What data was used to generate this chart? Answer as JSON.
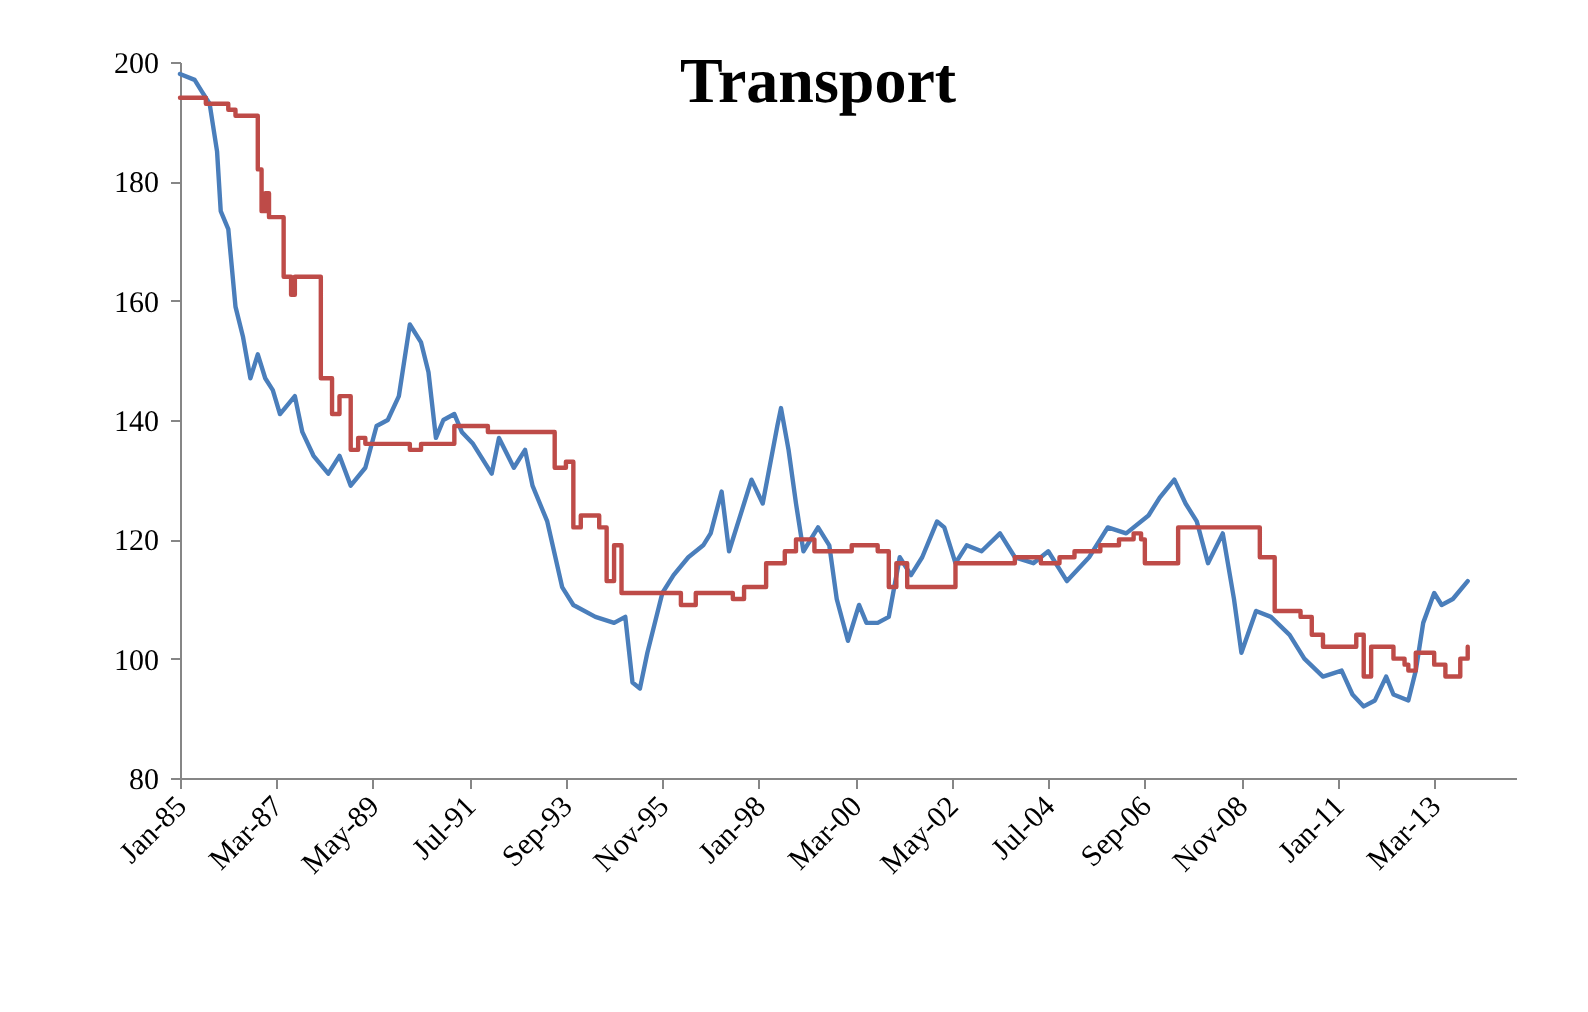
{
  "chart_data": {
    "type": "line",
    "title": "Transport",
    "xlim": [
      "1985-01",
      "2015-01"
    ],
    "xticks": [
      {
        "value": "1985-01",
        "label": "Jan-85"
      },
      {
        "value": "1987-03",
        "label": "Mar-87"
      },
      {
        "value": "1989-05",
        "label": "May-89"
      },
      {
        "value": "1991-07",
        "label": "Jul-91"
      },
      {
        "value": "1993-09",
        "label": "Sep-93"
      },
      {
        "value": "1995-11",
        "label": "Nov-95"
      },
      {
        "value": "1998-01",
        "label": "Jan-98"
      },
      {
        "value": "2000-03",
        "label": "Mar-00"
      },
      {
        "value": "2002-05",
        "label": "May-02"
      },
      {
        "value": "2004-07",
        "label": "Jul-04"
      },
      {
        "value": "2006-09",
        "label": "Sep-06"
      },
      {
        "value": "2008-11",
        "label": "Nov-08"
      },
      {
        "value": "2011-01",
        "label": "Jan-11"
      },
      {
        "value": "2013-03",
        "label": "Mar-13"
      }
    ],
    "ylim": [
      80,
      200
    ],
    "yticks": [
      80,
      100,
      120,
      140,
      160,
      180,
      200
    ],
    "grid": false,
    "marker": "none",
    "line_style": "solid",
    "series": [
      {
        "color": "#4a7ebb",
        "x": [
          "1985-01",
          "1985-05",
          "1985-07",
          "1985-09",
          "1985-11",
          "1985-12",
          "1986-02",
          "1986-04",
          "1986-06",
          "1986-08",
          "1986-10",
          "1986-12",
          "1987-02",
          "1987-04",
          "1987-08",
          "1987-10",
          "1988-01",
          "1988-05",
          "1988-08",
          "1988-11",
          "1989-03",
          "1989-06",
          "1989-09",
          "1989-12",
          "1990-03",
          "1990-06",
          "1990-08",
          "1990-10",
          "1990-12",
          "1991-03",
          "1991-05",
          "1991-08",
          "1992-01",
          "1992-03",
          "1992-07",
          "1992-10",
          "1992-12",
          "1993-04",
          "1993-08",
          "1993-11",
          "1994-05",
          "1994-10",
          "1995-01",
          "1995-03",
          "1995-05",
          "1995-07",
          "1995-11",
          "1996-02",
          "1996-06",
          "1996-10",
          "1996-12",
          "1997-03",
          "1997-05",
          "1997-09",
          "1997-11",
          "1998-02",
          "1998-06",
          "1998-07",
          "1998-09",
          "1998-11",
          "1999-01",
          "1999-05",
          "1999-08",
          "1999-10",
          "2000-01",
          "2000-04",
          "2000-06",
          "2000-09",
          "2000-12",
          "2001-03",
          "2001-06",
          "2001-09",
          "2002-01",
          "2002-03",
          "2002-06",
          "2002-09",
          "2003-01",
          "2003-06",
          "2003-10",
          "2004-03",
          "2004-07",
          "2004-12",
          "2005-06",
          "2005-11",
          "2006-04",
          "2006-10",
          "2007-01",
          "2007-05",
          "2007-08",
          "2007-11",
          "2008-02",
          "2008-06",
          "2008-09",
          "2008-11",
          "2009-03",
          "2009-07",
          "2009-12",
          "2010-04",
          "2010-09",
          "2011-02",
          "2011-05",
          "2011-08",
          "2011-11",
          "2012-02",
          "2012-04",
          "2012-08",
          "2012-10",
          "2012-12",
          "2013-03",
          "2013-05",
          "2013-08",
          "2013-12"
        ],
        "values": [
          198,
          197,
          195,
          193,
          185,
          175,
          172,
          159,
          154,
          147,
          151,
          147,
          145,
          141,
          144,
          138,
          134,
          131,
          134,
          129,
          132,
          139,
          140,
          144,
          156,
          153,
          148,
          137,
          140,
          141,
          138,
          136,
          131,
          137,
          132,
          135,
          129,
          123,
          112,
          109,
          107,
          106,
          107,
          96,
          95,
          101,
          111,
          114,
          117,
          119,
          121,
          128,
          118,
          126,
          130,
          126,
          139,
          142,
          135,
          126,
          118,
          122,
          119,
          110,
          103,
          109,
          106,
          106,
          107,
          117,
          114,
          117,
          123,
          122,
          116,
          119,
          118,
          121,
          117,
          116,
          118,
          113,
          117,
          122,
          121,
          124,
          127,
          130,
          126,
          123,
          116,
          121,
          110,
          101,
          108,
          107,
          104,
          100,
          97,
          98,
          94,
          92,
          93,
          97,
          94,
          93,
          98,
          106,
          111,
          109,
          110,
          113
        ]
      },
      {
        "type": "step",
        "color": "#be4b48",
        "x": [
          "1985-01",
          "1985-08",
          "1986-02",
          "1986-04",
          "1986-10",
          "1986-11",
          "1986-12",
          "1987-01",
          "1987-05",
          "1987-07",
          "1987-08",
          "1988-03",
          "1988-06",
          "1988-08",
          "1988-11",
          "1989-01",
          "1989-03",
          "1990-03",
          "1990-06",
          "1991-03",
          "1991-12",
          "1993-06",
          "1993-09",
          "1993-11",
          "1994-01",
          "1994-06",
          "1994-08",
          "1994-10",
          "1994-12",
          "1996-04",
          "1996-08",
          "1997-06",
          "1997-09",
          "1998-03",
          "1998-08",
          "1998-11",
          "1999-04",
          "2000-02",
          "2000-09",
          "2000-12",
          "2001-02",
          "2001-05",
          "2002-06",
          "2003-10",
          "2004-05",
          "2004-10",
          "2005-02",
          "2005-09",
          "2006-02",
          "2006-06",
          "2006-08",
          "2006-09",
          "2007-06",
          "2009-04",
          "2009-08",
          "2010-03",
          "2010-06",
          "2010-09",
          "2011-06",
          "2011-08",
          "2011-10",
          "2012-04",
          "2012-07",
          "2012-08",
          "2012-10",
          "2013-03",
          "2013-06",
          "2013-10",
          "2013-12"
        ],
        "values": [
          194,
          193,
          192,
          191,
          182,
          175,
          178,
          174,
          164,
          161,
          164,
          147,
          141,
          144,
          135,
          137,
          136,
          135,
          136,
          139,
          138,
          132,
          133,
          122,
          124,
          122,
          113,
          119,
          111,
          109,
          111,
          110,
          112,
          116,
          118,
          120,
          118,
          119,
          118,
          112,
          116,
          112,
          116,
          117,
          116,
          117,
          118,
          119,
          120,
          121,
          120,
          116,
          122,
          117,
          108,
          107,
          104,
          102,
          104,
          97,
          102,
          100,
          99,
          98,
          101,
          99,
          97,
          100,
          102
        ]
      }
    ]
  }
}
